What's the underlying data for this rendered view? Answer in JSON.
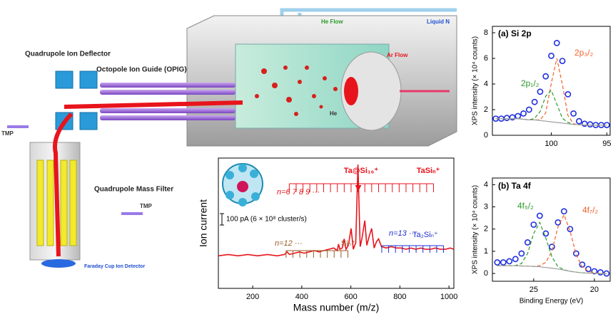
{
  "diagram": {
    "labels": [
      "Quadrupole Ion Deflector",
      "Octopole Ion Guide (OPIG)",
      "Quadrupole Mass Filter",
      "Faraday Cup Ion Detector",
      "TMP",
      "TMP",
      "He Flow",
      "Liquid N",
      "Ar Flow",
      "He"
    ]
  },
  "chart_data": [
    {
      "type": "line",
      "x_label": "Mass number (m/z)",
      "y_label": "Ion current",
      "xlim": [
        60,
        1020
      ],
      "ylim": [
        0,
        100
      ],
      "xticks": [
        200,
        400,
        600,
        800,
        1000
      ],
      "x": [
        60,
        100,
        140,
        180,
        220,
        260,
        300,
        330,
        340,
        350,
        370,
        390,
        410,
        430,
        450,
        470,
        490,
        510,
        530,
        545,
        550,
        555,
        565,
        573,
        580,
        590,
        601,
        610,
        620,
        629,
        638,
        645,
        657,
        665,
        675,
        685,
        695,
        705,
        713,
        725,
        745,
        765,
        785,
        805,
        825,
        845,
        865,
        885,
        905,
        925,
        945,
        965,
        985,
        1005,
        1020
      ],
      "series": [
        {
          "color": "#e8141c",
          "values": [
            25,
            26,
            25,
            26,
            25,
            26,
            25,
            26,
            28,
            26,
            27,
            28,
            27,
            28,
            29,
            28,
            29,
            30,
            31,
            29,
            34,
            30,
            31,
            38,
            30,
            33,
            46,
            30,
            35,
            95,
            32,
            38,
            52,
            33,
            40,
            46,
            31,
            36,
            38,
            32,
            31,
            32,
            31,
            31,
            30,
            31,
            30,
            31,
            30,
            30,
            31,
            30,
            30,
            31,
            30
          ]
        }
      ],
      "annotations": [
        "n=6 7 8 9 ···",
        "Ta@Si₁₆⁺",
        "TaSiₙ⁺",
        "n=12 ···",
        "Siₙ⁺",
        "n=13 ···",
        "Ta₂Siₙ⁺",
        "100 pA (6 × 10⁸ cluster/s)"
      ],
      "combs": [
        {
          "color": "#e8141c",
          "positions": [
            349,
            377,
            405,
            433,
            461,
            489,
            517,
            545,
            573,
            601,
            629,
            657,
            685,
            713,
            741,
            769,
            797,
            825,
            853,
            881,
            909,
            937
          ]
        },
        {
          "color": "#9a5b22",
          "positions": [
            336,
            364,
            392,
            420,
            448,
            476,
            504,
            532,
            560,
            588
          ]
        },
        {
          "color": "#1f2fd0",
          "positions": [
            726,
            754,
            782,
            810,
            838,
            866,
            894,
            922,
            950,
            978
          ]
        }
      ]
    },
    {
      "type": "scatter",
      "title": "(a) Si 2p",
      "y_label": "XPS intensity (× 10⁴ counts)",
      "xlim": [
        105.3,
        94.7
      ],
      "ylim": [
        0,
        8.5
      ],
      "xticks": [
        100,
        95
      ],
      "yticks": [
        0,
        2,
        4,
        6,
        8
      ],
      "x": [
        105,
        104.5,
        104,
        103.5,
        103,
        102.5,
        102,
        101.5,
        101,
        100.5,
        100,
        99.5,
        99,
        98.5,
        98,
        97.5,
        97,
        96.5,
        96,
        95.5,
        95
      ],
      "series": [
        {
          "style": "circle",
          "color": "#1f2fe0",
          "values": [
            1.3,
            1.3,
            1.35,
            1.4,
            1.5,
            1.7,
            2.0,
            2.6,
            3.4,
            4.6,
            6.2,
            7.2,
            5.8,
            3.2,
            1.7,
            1.1,
            0.9,
            0.85,
            0.8,
            0.8,
            0.8
          ]
        },
        {
          "name": "2p₃/₂",
          "style": "dashed",
          "color": "#f0622a",
          "values": [
            1.3,
            1.3,
            1.3,
            1.3,
            1.3,
            1.25,
            1.2,
            1.2,
            1.2,
            1.75,
            4.05,
            6.0,
            3.95,
            1.55,
            0.9,
            0.82,
            0.8,
            0.8,
            0.8,
            0.8,
            0.8
          ]
        },
        {
          "name": "2p₁/₂",
          "style": "dashed",
          "color": "#2a9a2a",
          "values": [
            1.3,
            1.3,
            1.3,
            1.3,
            1.3,
            1.25,
            1.21,
            1.32,
            1.85,
            3.05,
            3.5,
            2.43,
            1.33,
            1.0,
            0.85,
            0.82,
            0.8,
            0.8,
            0.8,
            0.8,
            0.8
          ]
        },
        {
          "style": "solid",
          "color": "#a0a0a0",
          "values": [
            1.3,
            1.3,
            1.3,
            1.3,
            1.3,
            1.25,
            1.2,
            1.2,
            1.15,
            1.1,
            1.05,
            1.0,
            0.95,
            0.9,
            0.85,
            0.82,
            0.8,
            0.8,
            0.8,
            0.8,
            0.8
          ]
        }
      ]
    },
    {
      "type": "scatter",
      "title": "(b) Ta 4f",
      "x_label": "Binding Energy (eV)",
      "y_label": "XPS intensity (× 10⁴ counts)",
      "xlim": [
        28.4,
        18.7
      ],
      "ylim": [
        -0.35,
        4.3
      ],
      "xticks": [
        25,
        20
      ],
      "yticks": [
        0,
        1,
        2,
        3,
        4
      ],
      "x": [
        28,
        27.5,
        27,
        26.5,
        26,
        25.5,
        25,
        24.5,
        24,
        23.5,
        23,
        22.5,
        22,
        21.5,
        21,
        20.5,
        20,
        19.5,
        19
      ],
      "series": [
        {
          "style": "circle",
          "color": "#1f2fe0",
          "values": [
            0.5,
            0.5,
            0.55,
            0.65,
            0.9,
            1.4,
            2.2,
            2.6,
            1.8,
            1.2,
            2.3,
            2.8,
            2.0,
            0.9,
            0.4,
            0.2,
            0.1,
            0.05,
            0.0
          ]
        },
        {
          "name": "4f₇/₂",
          "style": "dashed",
          "color": "#f0622a",
          "values": [
            0.35,
            0.35,
            0.35,
            0.35,
            0.34,
            0.33,
            0.32,
            0.35,
            0.5,
            1.0,
            2.1,
            2.65,
            1.9,
            0.85,
            0.3,
            0.1,
            0.03,
            0.0,
            0.0
          ]
        },
        {
          "name": "4f₅/₂",
          "style": "dashed",
          "color": "#2a9a2a",
          "values": [
            0.35,
            0.35,
            0.35,
            0.36,
            0.45,
            0.9,
            1.8,
            2.3,
            1.6,
            0.75,
            0.3,
            0.17,
            0.1,
            0.06,
            0.03,
            0.02,
            0.01,
            0.0,
            0.0
          ]
        },
        {
          "style": "solid",
          "color": "#a0a0a0",
          "values": [
            0.35,
            0.35,
            0.35,
            0.35,
            0.34,
            0.33,
            0.32,
            0.3,
            0.27,
            0.24,
            0.2,
            0.15,
            0.1,
            0.06,
            0.03,
            0.02,
            0.01,
            0.0,
            0.0
          ]
        }
      ]
    }
  ]
}
